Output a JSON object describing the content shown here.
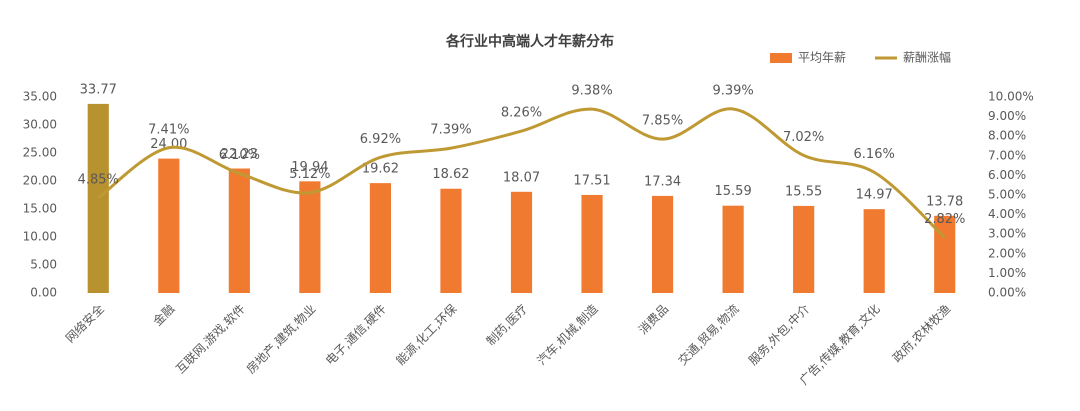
{
  "chart_data": {
    "type": "bar-line",
    "title": "各行业中高端人才年薪分布",
    "categories": [
      "网络安全",
      "金融",
      "互联网,游戏,软件",
      "房地产,建筑,物业",
      "电子,通信,硬件",
      "能源,化工,环保",
      "制药,医疗",
      "汽车,机械,制造",
      "消费品",
      "交通,贸易,物流",
      "服务,外包,中介",
      "广告,传媒,教育,文化",
      "政府,农林牧渔"
    ],
    "series": [
      {
        "name": "平均年薪",
        "type": "bar",
        "color": "#f07a30",
        "colors": [
          "#b8922e",
          "#f07a30",
          "#f07a30",
          "#f07a30",
          "#f07a30",
          "#f07a30",
          "#f07a30",
          "#f07a30",
          "#f07a30",
          "#f07a30",
          "#f07a30",
          "#f07a30",
          "#f07a30"
        ],
        "values": [
          33.77,
          24.0,
          22.23,
          19.94,
          19.62,
          18.62,
          18.07,
          17.51,
          17.34,
          15.59,
          15.55,
          14.97,
          13.78
        ],
        "value_labels": [
          "33.77",
          "24.00",
          "22.23",
          "19.94",
          "19.62",
          "18.62",
          "18.07",
          "17.51",
          "17.34",
          "15.59",
          "15.55",
          "14.97",
          "13.78"
        ]
      },
      {
        "name": "薪酬涨幅",
        "type": "line",
        "axis": "y2",
        "color": "#bf9a34",
        "values": [
          4.85,
          7.41,
          6.1,
          5.12,
          6.92,
          7.39,
          8.26,
          9.38,
          7.85,
          9.39,
          7.02,
          6.16,
          2.82
        ],
        "value_labels": [
          "4.85%",
          "7.41%",
          "6.10%",
          "5.12%",
          "6.92%",
          "7.39%",
          "8.26%",
          "9.38%",
          "7.85%",
          "9.39%",
          "7.02%",
          "6.16%",
          "2.82%"
        ]
      }
    ],
    "ylim": [
      0,
      35
    ],
    "yticks": [
      {
        "value": 0,
        "label": "0.00"
      },
      {
        "value": 5,
        "label": "5.00"
      },
      {
        "value": 10,
        "label": "10.00"
      },
      {
        "value": 15,
        "label": "15.00"
      },
      {
        "value": 20,
        "label": "20.00"
      },
      {
        "value": 25,
        "label": "25.00"
      },
      {
        "value": 30,
        "label": "30.00"
      },
      {
        "value": 35,
        "label": "35.00"
      }
    ],
    "y2lim": [
      0,
      10
    ],
    "y2ticks": [
      {
        "value": 0,
        "label": "0.00%"
      },
      {
        "value": 1,
        "label": "1.00%"
      },
      {
        "value": 2,
        "label": "2.00%"
      },
      {
        "value": 3,
        "label": "3.00%"
      },
      {
        "value": 4,
        "label": "4.00%"
      },
      {
        "value": 5,
        "label": "5.00%"
      },
      {
        "value": 6,
        "label": "6.00%"
      },
      {
        "value": 7,
        "label": "7.00%"
      },
      {
        "value": 8,
        "label": "8.00%"
      },
      {
        "value": 9,
        "label": "9.00%"
      },
      {
        "value": 10,
        "label": "10.00%"
      }
    ],
    "legend": "top-right"
  }
}
